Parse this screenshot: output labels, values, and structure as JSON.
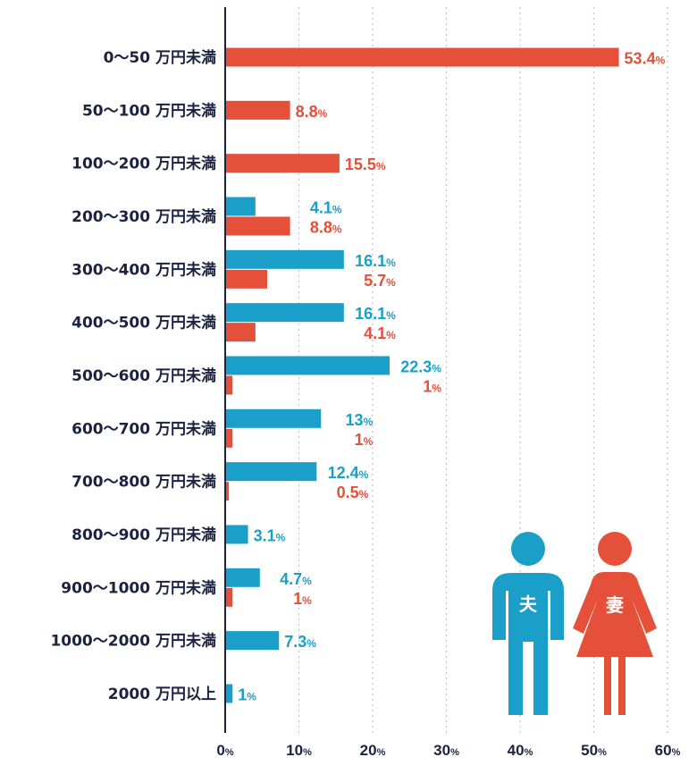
{
  "chart_data": {
    "type": "bar",
    "orientation": "horizontal",
    "categories": [
      "0～50 万円未満",
      "50～100 万円未満",
      "100～200 万円未満",
      "200～300 万円未満",
      "300～400 万円未満",
      "400～500 万円未満",
      "500～600 万円未満",
      "600～700 万円未満",
      "700～800 万円未満",
      "800～900 万円未満",
      "900～1000 万円未満",
      "1000～2000 万円未満",
      "2000 万円以上"
    ],
    "series": [
      {
        "name": "夫",
        "color": "#1aa0c8",
        "values": [
          null,
          null,
          null,
          4.1,
          16.1,
          16.1,
          22.3,
          13,
          12.4,
          3.1,
          4.7,
          7.3,
          1
        ],
        "labels": [
          null,
          null,
          null,
          "4.1",
          "16.1",
          "16.1",
          "22.3",
          "13",
          "12.4",
          "3.1",
          "4.7",
          "7.3",
          "1"
        ]
      },
      {
        "name": "妻",
        "color": "#e4503a",
        "values": [
          53.4,
          8.8,
          15.5,
          8.8,
          5.7,
          4.1,
          1,
          1,
          0.5,
          null,
          1,
          null,
          null
        ],
        "labels": [
          "53.4",
          "8.8",
          "15.5",
          "8.8",
          "5.7",
          "4.1",
          "1",
          "1",
          "0.5",
          null,
          "1",
          null,
          null
        ]
      }
    ],
    "value_unit": "%",
    "xlim": [
      0,
      60
    ],
    "xticks": [
      0,
      10,
      20,
      30,
      40,
      50,
      60
    ],
    "xtick_unit": "%",
    "grid": true,
    "legend": "bottom-right pictograms"
  },
  "legend": {
    "husband_label": "夫",
    "wife_label": "妻",
    "husband_icon": "man-icon",
    "wife_icon": "woman-icon"
  }
}
